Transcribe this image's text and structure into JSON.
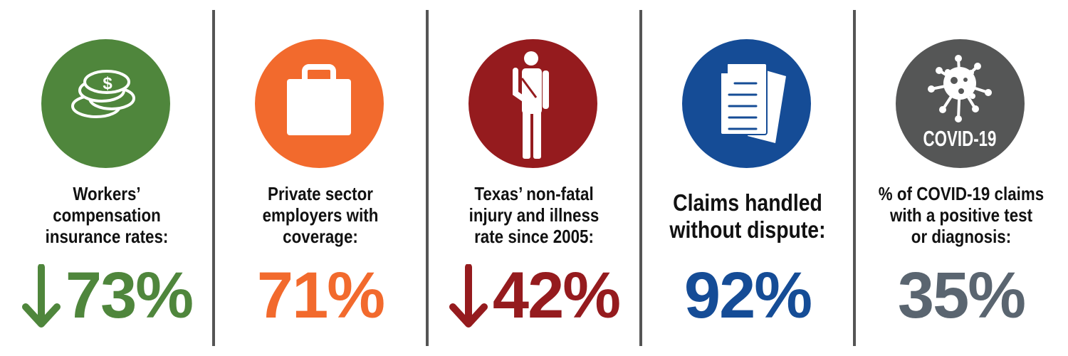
{
  "colors": {
    "green": "#4f863c",
    "orange": "#f26a2d",
    "red": "#951b1e",
    "blue": "#154c96",
    "gray_circle": "#555656",
    "gray_text": "#5a6570",
    "divider": "#555555"
  },
  "stats": [
    {
      "icon": "coins-icon",
      "label_lines": [
        "Workers’",
        "compensation",
        "insurance rates:"
      ],
      "value": "73%",
      "trend": "down",
      "color": "#4f863c"
    },
    {
      "icon": "briefcase-icon",
      "label_lines": [
        "Private sector",
        "employers with",
        "coverage:"
      ],
      "value": "71%",
      "trend": "",
      "color": "#f26a2d"
    },
    {
      "icon": "injured-person-icon",
      "label_lines": [
        "Texas’ non-fatal",
        "injury and illness",
        "rate since 2005:"
      ],
      "value": "42%",
      "trend": "down",
      "color": "#951b1e"
    },
    {
      "icon": "documents-icon",
      "label_lines": [
        "Claims handled",
        "without dispute:"
      ],
      "value": "92%",
      "trend": "",
      "color": "#154c96"
    },
    {
      "icon": "virus-icon",
      "icon_text": "COVID-19",
      "label_lines": [
        "% of COVID-19 claims",
        "with a positive test",
        "or diagnosis:"
      ],
      "value": "35%",
      "trend": "",
      "color": "#5a6570"
    }
  ]
}
